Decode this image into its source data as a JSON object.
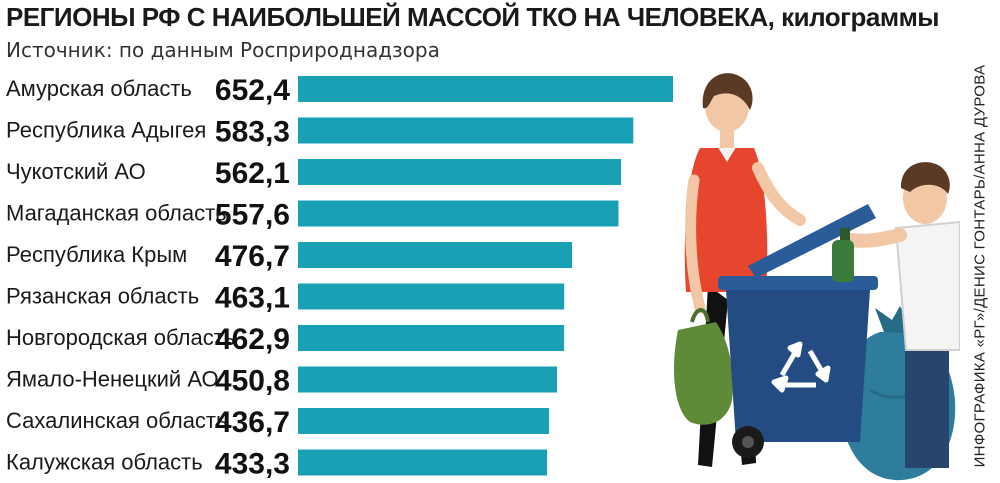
{
  "header": {
    "title": "РЕГИОНЫ РФ С НАИБОЛЬШЕЙ МАССОЙ ТКО НА ЧЕЛОВЕКА, килограммы",
    "source": "Источник: по данным Росприроднадзора",
    "credit": "ИНФОГРАФИКА «РГ»/ДЕНИС ГОНТАРЬ/АННА ДУРОВА"
  },
  "colors": {
    "bar": "#1aa0b4",
    "text": "#1a1a1a"
  },
  "chart_data": {
    "type": "bar",
    "orientation": "horizontal",
    "title": "РЕГИОНЫ РФ С НАИБОЛЬШЕЙ МАССОЙ ТКО НА ЧЕЛОВЕКА, килограммы",
    "categories": [
      "Амурская область",
      "Республика Адыгея",
      "Чукотский АО",
      "Магаданская область",
      "Республика Крым",
      "Рязанская область",
      "Новгородская область",
      "Ямало-Ненецкий АО",
      "Сахалинская область",
      "Калужская область"
    ],
    "values": [
      652.4,
      583.3,
      562.1,
      557.6,
      476.7,
      463.1,
      462.9,
      450.8,
      436.7,
      433.3
    ],
    "value_labels": [
      "652,4",
      "583,3",
      "562,1",
      "557,6",
      "476,7",
      "463,1",
      "462,9",
      "450,8",
      "436,7",
      "433,3"
    ],
    "xlim": [
      0,
      652.4
    ],
    "grid": false,
    "legend": "none"
  },
  "illustration": {
    "icons": [
      "woman-icon",
      "boy-icon",
      "recycling-bin-icon",
      "recycle-icon",
      "shopping-bag-icon",
      "garbage-bag-icon",
      "bottle-icon"
    ]
  }
}
